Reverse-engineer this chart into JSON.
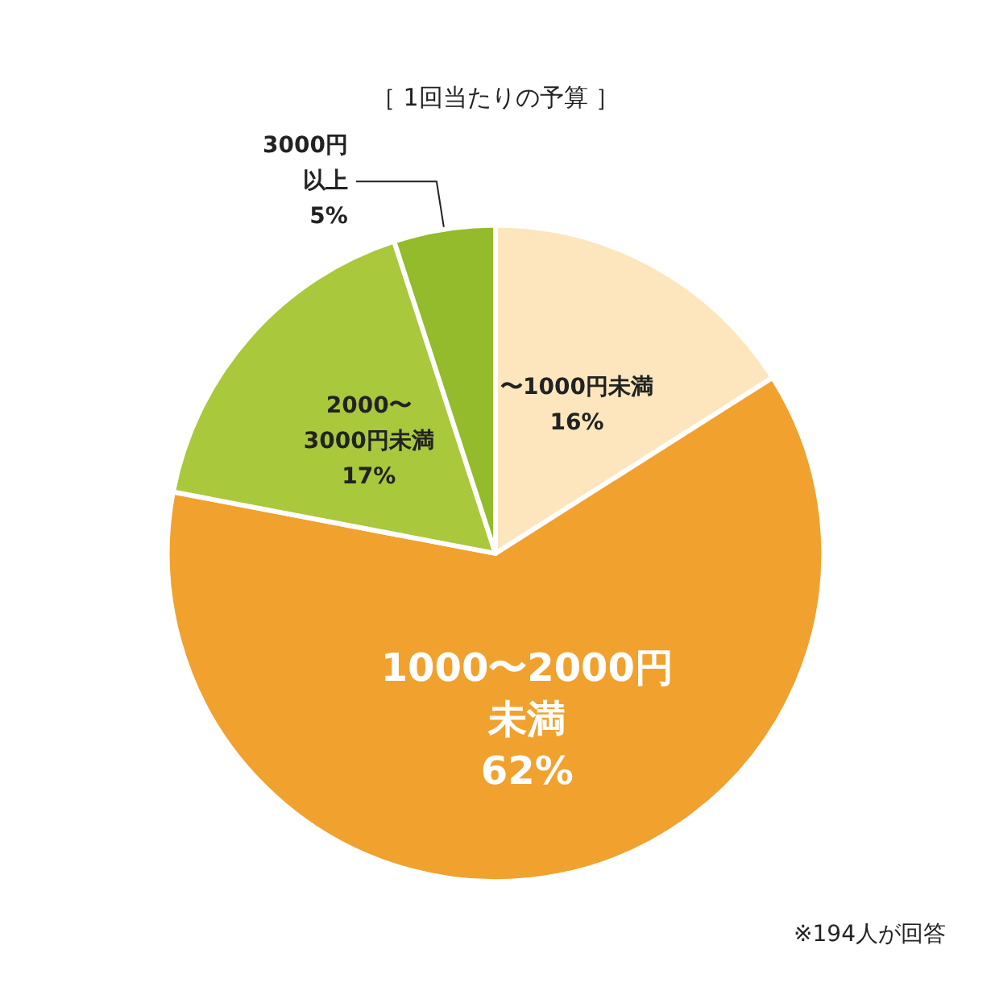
{
  "chart_data": {
    "type": "pie",
    "title": "［ 1回当たりの予算 ］",
    "categories": [
      "〜1000円未満",
      "1000〜2000円未満",
      "2000〜3000円未満",
      "3000円以上"
    ],
    "values": [
      16,
      62,
      17,
      5
    ],
    "colors": [
      "#fde6bd",
      "#f1a12e",
      "#a9c83b",
      "#93bb2c"
    ],
    "value_labels": [
      "16%",
      "62%",
      "17%",
      "5%"
    ],
    "annotations": [
      "※194人が回答"
    ]
  }
}
